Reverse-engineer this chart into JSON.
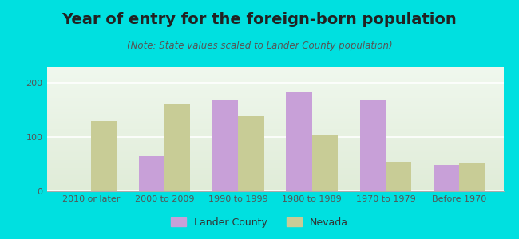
{
  "title": "Year of entry for the foreign-born population",
  "subtitle": "(Note: State values scaled to Lander County population)",
  "categories": [
    "2010 or later",
    "2000 to 2009",
    "1990 to 1999",
    "1980 to 1989",
    "1970 to 1979",
    "Before 1970"
  ],
  "lander_county": [
    0,
    65,
    170,
    185,
    168,
    48
  ],
  "nevada": [
    130,
    160,
    140,
    103,
    55,
    52
  ],
  "lander_color": "#c8a0d8",
  "nevada_color": "#c8cc96",
  "background_outer": "#00e0e0",
  "background_inner": "#e8f0e0",
  "ylim": [
    0,
    230
  ],
  "yticks": [
    0,
    100,
    200
  ],
  "bar_width": 0.35,
  "legend_lander": "Lander County",
  "legend_nevada": "Nevada",
  "title_fontsize": 14,
  "subtitle_fontsize": 8.5,
  "tick_fontsize": 8,
  "legend_fontsize": 9
}
